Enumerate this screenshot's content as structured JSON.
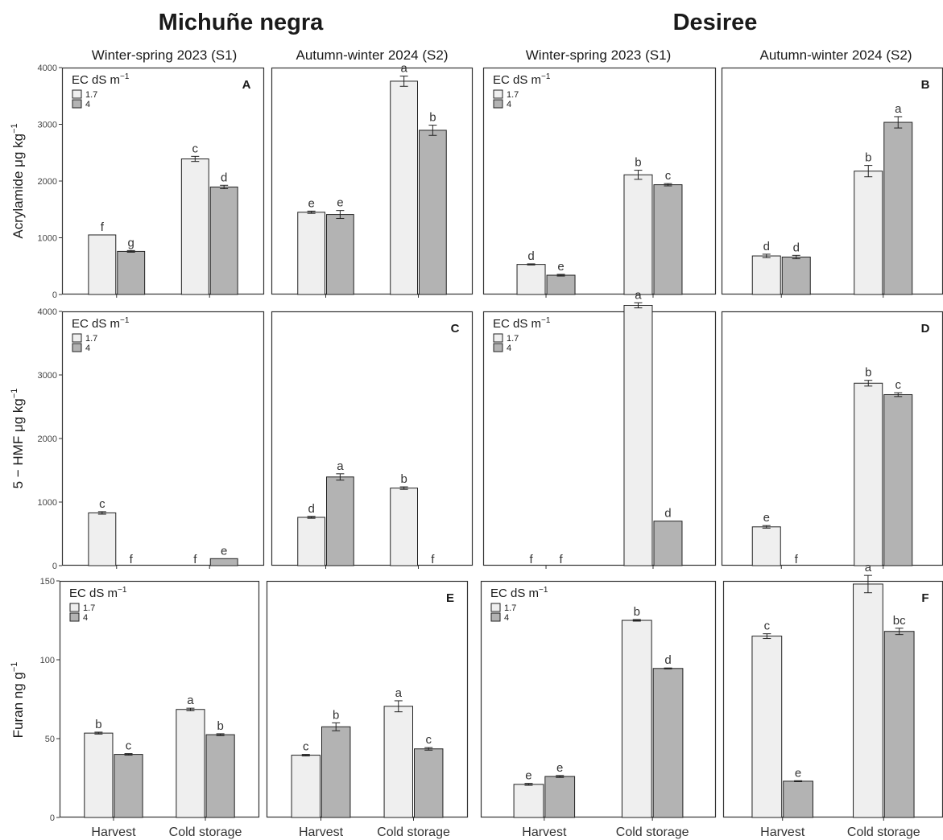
{
  "figure": {
    "cultivar_titles": [
      "Michuñe negra",
      "Desiree"
    ],
    "season_labels": [
      "Winter-spring 2023 (S1)",
      "Autumn-winter 2024 (S2)"
    ],
    "y_axis_labels": [
      {
        "base": "Acrylamide μg kg",
        "sup": "−1"
      },
      {
        "base": "5 − HMF μg kg",
        "sup": "−1"
      },
      {
        "base": "Furan ng g",
        "sup": "−1"
      }
    ],
    "x_categories": [
      "Harvest",
      "Cold storage"
    ],
    "legend": {
      "title": "EC dS m",
      "title_sup": "−1",
      "items": [
        "1.7",
        "4"
      ]
    },
    "colors": {
      "ec_1_7": "#efefef",
      "ec_4": "#b3b3b3",
      "frame": "#333333",
      "text": "#1a1a1a"
    }
  },
  "chart_data": [
    {
      "type": "bar",
      "panel_label": "A",
      "categories": [
        "Harvest",
        "Cold storage"
      ],
      "series": [
        {
          "name": "1.7",
          "values": [
            1050,
            2390
          ],
          "errors": [
            0,
            45
          ],
          "letters": [
            "f",
            "c"
          ]
        },
        {
          "name": "4",
          "values": [
            760,
            1895
          ],
          "errors": [
            15,
            30
          ],
          "letters": [
            "g",
            "d"
          ]
        }
      ],
      "ylim": [
        0,
        4000
      ],
      "yticks": [
        0,
        1000,
        2000,
        3000,
        4000
      ]
    },
    {
      "type": "bar",
      "panel_label": "",
      "categories": [
        "Harvest",
        "Cold storage"
      ],
      "series": [
        {
          "name": "1.7",
          "values": [
            1450,
            3760
          ],
          "errors": [
            20,
            90
          ],
          "letters": [
            "e",
            "a"
          ]
        },
        {
          "name": "4",
          "values": [
            1410,
            2895
          ],
          "errors": [
            70,
            90
          ],
          "letters": [
            "e",
            "b"
          ]
        }
      ],
      "ylim": [
        0,
        4000
      ],
      "yticks": [
        0,
        1000,
        2000,
        3000,
        4000
      ]
    },
    {
      "type": "bar",
      "panel_label": "",
      "categories": [
        "Harvest",
        "Cold storage"
      ],
      "series": [
        {
          "name": "1.7",
          "values": [
            530,
            2110
          ],
          "errors": [
            10,
            80
          ],
          "letters": [
            "d",
            "b"
          ]
        },
        {
          "name": "4",
          "values": [
            340,
            1935
          ],
          "errors": [
            15,
            20
          ],
          "letters": [
            "e",
            "c"
          ]
        }
      ],
      "ylim": [
        0,
        4000
      ],
      "yticks": [
        0,
        1000,
        2000,
        3000,
        4000
      ]
    },
    {
      "type": "bar",
      "panel_label": "B",
      "categories": [
        "Harvest",
        "Cold storage"
      ],
      "series": [
        {
          "name": "1.7",
          "values": [
            680,
            2175
          ],
          "errors": [
            30,
            100
          ],
          "letters": [
            "d",
            "b"
          ]
        },
        {
          "name": "4",
          "values": [
            660,
            3035
          ],
          "errors": [
            30,
            100
          ],
          "letters": [
            "d",
            "a"
          ]
        }
      ],
      "ylim": [
        0,
        4000
      ],
      "yticks": [
        0,
        1000,
        2000,
        3000,
        4000
      ]
    },
    {
      "type": "bar",
      "panel_label": "",
      "categories": [
        "Harvest",
        "Cold storage"
      ],
      "series": [
        {
          "name": "1.7",
          "values": [
            830,
            0
          ],
          "errors": [
            20,
            0
          ],
          "letters": [
            "c",
            "f"
          ]
        },
        {
          "name": "4",
          "values": [
            0,
            110
          ],
          "errors": [
            0,
            0
          ],
          "letters": [
            "f",
            "e"
          ]
        }
      ],
      "ylim": [
        0,
        4000
      ],
      "yticks": [
        0,
        1000,
        2000,
        3000,
        4000
      ]
    },
    {
      "type": "bar",
      "panel_label": "C",
      "categories": [
        "Harvest",
        "Cold storage"
      ],
      "series": [
        {
          "name": "1.7",
          "values": [
            760,
            1220
          ],
          "errors": [
            15,
            20
          ],
          "letters": [
            "d",
            "b"
          ]
        },
        {
          "name": "4",
          "values": [
            1395,
            0
          ],
          "errors": [
            50,
            0
          ],
          "letters": [
            "a",
            "f"
          ]
        }
      ],
      "ylim": [
        0,
        4000
      ],
      "yticks": [
        0,
        1000,
        2000,
        3000,
        4000
      ]
    },
    {
      "type": "bar",
      "panel_label": "",
      "categories": [
        "Harvest",
        "Cold storage"
      ],
      "series": [
        {
          "name": "1.7",
          "values": [
            0,
            4095
          ],
          "errors": [
            0,
            40
          ],
          "letters": [
            "f",
            "a"
          ]
        },
        {
          "name": "4",
          "values": [
            0,
            700
          ],
          "errors": [
            0,
            0
          ],
          "letters": [
            "f",
            "d"
          ]
        }
      ],
      "ylim": [
        0,
        4000
      ],
      "yticks": [
        0,
        1000,
        2000,
        3000,
        4000
      ]
    },
    {
      "type": "bar",
      "panel_label": "D",
      "categories": [
        "Harvest",
        "Cold storage"
      ],
      "series": [
        {
          "name": "1.7",
          "values": [
            610,
            2870
          ],
          "errors": [
            20,
            45
          ],
          "letters": [
            "e",
            "b"
          ]
        },
        {
          "name": "4",
          "values": [
            0,
            2690
          ],
          "errors": [
            0,
            30
          ],
          "letters": [
            "f",
            "c"
          ]
        }
      ],
      "ylim": [
        0,
        4000
      ],
      "yticks": [
        0,
        1000,
        2000,
        3000,
        4000
      ]
    },
    {
      "type": "bar",
      "panel_label": "",
      "categories": [
        "Harvest",
        "Cold storage"
      ],
      "series": [
        {
          "name": "1.7",
          "values": [
            53.5,
            68.5
          ],
          "errors": [
            0.6,
            0.8
          ],
          "letters": [
            "b",
            "a"
          ]
        },
        {
          "name": "4",
          "values": [
            40,
            52.5
          ],
          "errors": [
            0.5,
            0.6
          ],
          "letters": [
            "c",
            "b"
          ]
        }
      ],
      "ylim": [
        0,
        150
      ],
      "yticks": [
        0,
        50,
        100,
        150
      ]
    },
    {
      "type": "bar",
      "panel_label": "E",
      "categories": [
        "Harvest",
        "Cold storage"
      ],
      "series": [
        {
          "name": "1.7",
          "values": [
            39.5,
            70.5
          ],
          "errors": [
            0.5,
            3.5
          ],
          "letters": [
            "c",
            "a"
          ]
        },
        {
          "name": "4",
          "values": [
            57.5,
            43.5
          ],
          "errors": [
            2.5,
            0.8
          ],
          "letters": [
            "b",
            "c"
          ]
        }
      ],
      "ylim": [
        0,
        150
      ],
      "yticks": [
        0,
        50,
        100,
        150
      ]
    },
    {
      "type": "bar",
      "panel_label": "",
      "categories": [
        "Harvest",
        "Cold storage"
      ],
      "series": [
        {
          "name": "1.7",
          "values": [
            21,
            125
          ],
          "errors": [
            0.6,
            0.5
          ],
          "letters": [
            "e",
            "b"
          ]
        },
        {
          "name": "4",
          "values": [
            26,
            94.5
          ],
          "errors": [
            0.6,
            0.3
          ],
          "letters": [
            "e",
            "d"
          ]
        }
      ],
      "ylim": [
        0,
        150
      ],
      "yticks": [
        0,
        50,
        100,
        150
      ]
    },
    {
      "type": "bar",
      "panel_label": "F",
      "categories": [
        "Harvest",
        "Cold storage"
      ],
      "series": [
        {
          "name": "1.7",
          "values": [
            115,
            148
          ],
          "errors": [
            1.5,
            5.5
          ],
          "letters": [
            "c",
            "a"
          ]
        },
        {
          "name": "4",
          "values": [
            23,
            118
          ],
          "errors": [
            0.3,
            2
          ],
          "letters": [
            "e",
            "bc"
          ]
        }
      ],
      "ylim": [
        0,
        150
      ],
      "yticks": [
        0,
        50,
        100,
        150
      ]
    }
  ]
}
